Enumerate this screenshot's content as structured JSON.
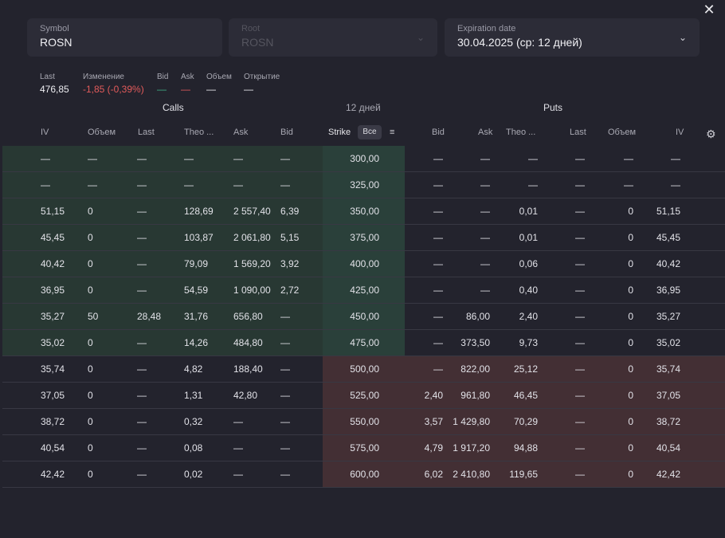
{
  "close_label": "✕",
  "symbol": {
    "label": "Symbol",
    "value": "ROSN"
  },
  "root": {
    "label": "Root",
    "value": "ROSN"
  },
  "expiration": {
    "label": "Expiration date",
    "value": "30.04.2025 (ср: 12 дней)"
  },
  "quote": {
    "last_label": "Last",
    "last_value": "476,85",
    "change_label": "Изменение",
    "change_value": "-1,85 (-0,39%)",
    "bid_label": "Bid",
    "bid_value": "—",
    "ask_label": "Ask",
    "ask_value": "—",
    "volume_label": "Объем",
    "volume_value": "—",
    "oi_label": "Открытие",
    "oi_value": "—"
  },
  "sections": {
    "calls": "Calls",
    "days": "12 дней",
    "puts": "Puts"
  },
  "columns": {
    "call_iv": "IV",
    "call_volume": "Объем",
    "call_last": "Last",
    "call_theo": "Theo ...",
    "call_ask": "Ask",
    "call_bid": "Bid",
    "strike": "Strike",
    "all_button": "Все",
    "put_bid": "Bid",
    "put_ask": "Ask",
    "put_theo": "Theo ...",
    "put_last": "Last",
    "put_volume": "Объем",
    "put_iv": "IV"
  },
  "colors": {
    "itm_calls": "#283833",
    "itm_strike": "#2a403a",
    "otm": "#432f34",
    "negative": "#e35b5b"
  },
  "rows": [
    {
      "c_iv": "—",
      "c_vol": "—",
      "c_last": "—",
      "c_theo": "—",
      "c_ask": "—",
      "c_bid": "—",
      "strike": "300,00",
      "p_bid": "—",
      "p_ask": "—",
      "p_theo": "—",
      "p_last": "—",
      "p_vol": "—",
      "p_iv": "—",
      "zone": "itm"
    },
    {
      "c_iv": "—",
      "c_vol": "—",
      "c_last": "—",
      "c_theo": "—",
      "c_ask": "—",
      "c_bid": "—",
      "strike": "325,00",
      "p_bid": "—",
      "p_ask": "—",
      "p_theo": "—",
      "p_last": "—",
      "p_vol": "—",
      "p_iv": "—",
      "zone": "itm"
    },
    {
      "c_iv": "51,15",
      "c_vol": "0",
      "c_last": "—",
      "c_theo": "128,69",
      "c_ask": "2 557,40",
      "c_bid": "6,39",
      "strike": "350,00",
      "p_bid": "—",
      "p_ask": "—",
      "p_theo": "0,01",
      "p_last": "—",
      "p_vol": "0",
      "p_iv": "51,15",
      "zone": "itm"
    },
    {
      "c_iv": "45,45",
      "c_vol": "0",
      "c_last": "—",
      "c_theo": "103,87",
      "c_ask": "2 061,80",
      "c_bid": "5,15",
      "strike": "375,00",
      "p_bid": "—",
      "p_ask": "—",
      "p_theo": "0,01",
      "p_last": "—",
      "p_vol": "0",
      "p_iv": "45,45",
      "zone": "itm"
    },
    {
      "c_iv": "40,42",
      "c_vol": "0",
      "c_last": "—",
      "c_theo": "79,09",
      "c_ask": "1 569,20",
      "c_bid": "3,92",
      "strike": "400,00",
      "p_bid": "—",
      "p_ask": "—",
      "p_theo": "0,06",
      "p_last": "—",
      "p_vol": "0",
      "p_iv": "40,42",
      "zone": "itm"
    },
    {
      "c_iv": "36,95",
      "c_vol": "0",
      "c_last": "—",
      "c_theo": "54,59",
      "c_ask": "1 090,00",
      "c_bid": "2,72",
      "strike": "425,00",
      "p_bid": "—",
      "p_ask": "—",
      "p_theo": "0,40",
      "p_last": "—",
      "p_vol": "0",
      "p_iv": "36,95",
      "zone": "itm"
    },
    {
      "c_iv": "35,27",
      "c_vol": "50",
      "c_last": "28,48",
      "c_theo": "31,76",
      "c_ask": "656,80",
      "c_bid": "—",
      "strike": "450,00",
      "p_bid": "—",
      "p_ask": "86,00",
      "p_theo": "2,40",
      "p_last": "—",
      "p_vol": "0",
      "p_iv": "35,27",
      "zone": "itm"
    },
    {
      "c_iv": "35,02",
      "c_vol": "0",
      "c_last": "—",
      "c_theo": "14,26",
      "c_ask": "484,80",
      "c_bid": "—",
      "strike": "475,00",
      "p_bid": "—",
      "p_ask": "373,50",
      "p_theo": "9,73",
      "p_last": "—",
      "p_vol": "0",
      "p_iv": "35,02",
      "zone": "itm"
    },
    {
      "c_iv": "35,74",
      "c_vol": "0",
      "c_last": "—",
      "c_theo": "4,82",
      "c_ask": "188,40",
      "c_bid": "—",
      "strike": "500,00",
      "p_bid": "—",
      "p_ask": "822,00",
      "p_theo": "25,12",
      "p_last": "—",
      "p_vol": "0",
      "p_iv": "35,74",
      "zone": "otm"
    },
    {
      "c_iv": "37,05",
      "c_vol": "0",
      "c_last": "—",
      "c_theo": "1,31",
      "c_ask": "42,80",
      "c_bid": "—",
      "strike": "525,00",
      "p_bid": "2,40",
      "p_ask": "961,80",
      "p_theo": "46,45",
      "p_last": "—",
      "p_vol": "0",
      "p_iv": "37,05",
      "zone": "otm"
    },
    {
      "c_iv": "38,72",
      "c_vol": "0",
      "c_last": "—",
      "c_theo": "0,32",
      "c_ask": "—",
      "c_bid": "—",
      "strike": "550,00",
      "p_bid": "3,57",
      "p_ask": "1 429,80",
      "p_theo": "70,29",
      "p_last": "—",
      "p_vol": "0",
      "p_iv": "38,72",
      "zone": "otm"
    },
    {
      "c_iv": "40,54",
      "c_vol": "0",
      "c_last": "—",
      "c_theo": "0,08",
      "c_ask": "—",
      "c_bid": "—",
      "strike": "575,00",
      "p_bid": "4,79",
      "p_ask": "1 917,20",
      "p_theo": "94,88",
      "p_last": "—",
      "p_vol": "0",
      "p_iv": "40,54",
      "zone": "otm"
    },
    {
      "c_iv": "42,42",
      "c_vol": "0",
      "c_last": "—",
      "c_theo": "0,02",
      "c_ask": "—",
      "c_bid": "—",
      "strike": "600,00",
      "p_bid": "6,02",
      "p_ask": "2 410,80",
      "p_theo": "119,65",
      "p_last": "—",
      "p_vol": "0",
      "p_iv": "42,42",
      "zone": "otm"
    }
  ]
}
